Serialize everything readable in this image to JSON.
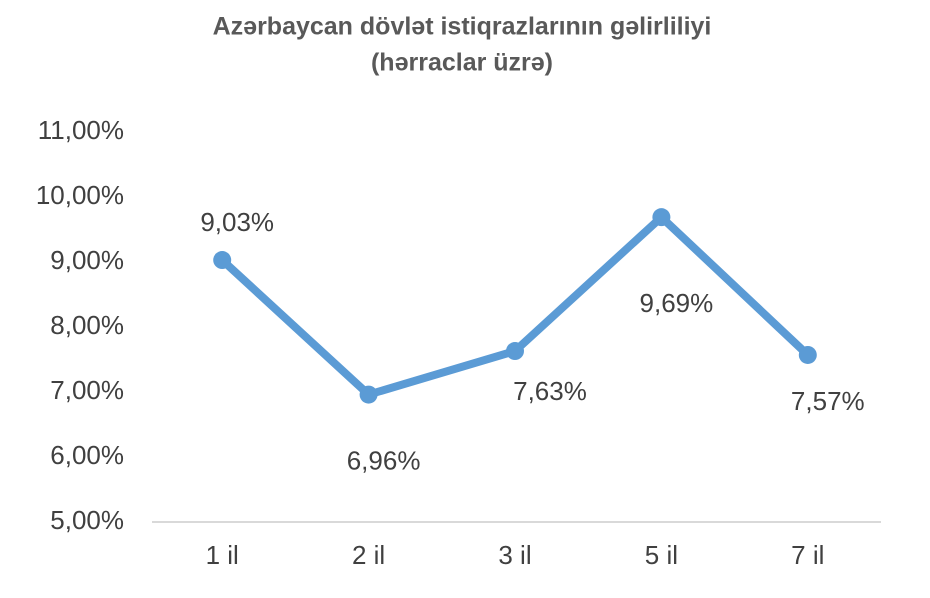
{
  "chart_data": {
    "type": "line",
    "title": "Azərbaycan dövlət istiqrazlarının gəlirliliyi",
    "subtitle": "(hərraclar üzrə)",
    "categories": [
      "1 il",
      "2 il",
      "3 il",
      "5 il",
      "7 il"
    ],
    "series": [
      {
        "color": "#5b9bd5",
        "values": [
          9.03,
          6.96,
          7.63,
          9.69,
          7.57
        ],
        "value_labels": [
          "9,03%",
          "6,96%",
          "7,63%",
          "9,69%",
          "7,57%"
        ]
      }
    ],
    "ylim": [
      5,
      11
    ],
    "yticks": [
      {
        "value": 5,
        "label": "5,00%"
      },
      {
        "value": 6,
        "label": "6,00%"
      },
      {
        "value": 7,
        "label": "7,00%"
      },
      {
        "value": 8,
        "label": "8,00%"
      },
      {
        "value": 9,
        "label": "9,00%"
      },
      {
        "value": 10,
        "label": "10,00%"
      },
      {
        "value": 11,
        "label": "11,00%"
      }
    ],
    "grid": false
  }
}
